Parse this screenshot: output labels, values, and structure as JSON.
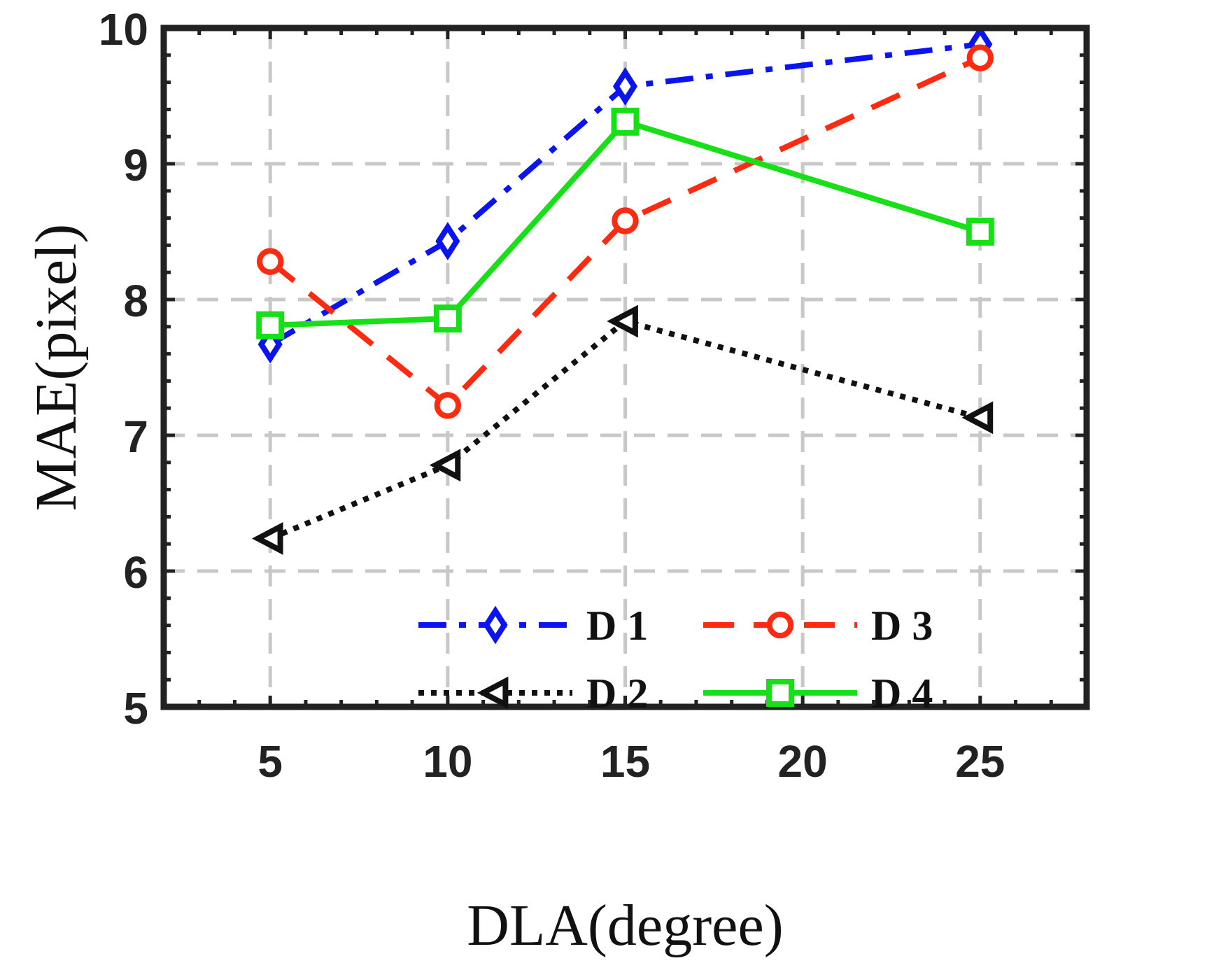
{
  "chart_data": {
    "type": "line",
    "title": "",
    "xlabel": "DLA(degree)",
    "ylabel": "MAE(pixel)",
    "x": [
      5,
      10,
      15,
      25
    ],
    "xticks": [
      5,
      10,
      15,
      20,
      25
    ],
    "yticks": [
      5,
      6,
      7,
      8,
      9,
      10
    ],
    "xlim": [
      2,
      28
    ],
    "ylim": [
      5,
      10
    ],
    "grid": true,
    "legend_position": "lower-middle",
    "series": [
      {
        "name": "D 1",
        "values": [
          7.67,
          8.43,
          9.57,
          9.88
        ],
        "color": "#0a14f0",
        "marker": "diamond",
        "line": "dashdot"
      },
      {
        "name": "D 2",
        "values": [
          6.24,
          6.78,
          7.84,
          7.13
        ],
        "color": "#111111",
        "marker": "triangle-left",
        "line": "dotted"
      },
      {
        "name": "D 3",
        "values": [
          8.28,
          7.22,
          8.58,
          9.78
        ],
        "color": "#ff2a10",
        "marker": "circle",
        "line": "dashed"
      },
      {
        "name": "D 4",
        "values": [
          7.81,
          7.86,
          9.31,
          8.5
        ],
        "color": "#18e018",
        "marker": "square",
        "line": "solid"
      }
    ]
  }
}
